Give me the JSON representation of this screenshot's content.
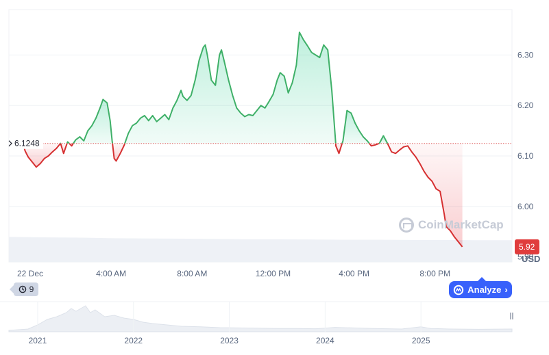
{
  "chart_data": {
    "type": "area",
    "currency_label": "USD",
    "baseline_value": 6.1248,
    "baseline_label": "6.1248",
    "current_value_label": "5.92",
    "current_value": 5.92,
    "ylim": [
      5.89,
      6.39
    ],
    "y_ticks": [
      {
        "label": "6.30",
        "value": 6.3
      },
      {
        "label": "6.20",
        "value": 6.2
      },
      {
        "label": "6.10",
        "value": 6.1
      },
      {
        "label": "6.00",
        "value": 6.0
      },
      {
        "label": "5.90",
        "value": 5.9
      }
    ],
    "x_range": [
      -1.05,
      23.8
    ],
    "x_ticks": [
      {
        "label": "22 Dec",
        "x": 0
      },
      {
        "label": "4:00 AM",
        "x": 4
      },
      {
        "label": "8:00 AM",
        "x": 8
      },
      {
        "label": "12:00 PM",
        "x": 12
      },
      {
        "label": "4:00 PM",
        "x": 16
      },
      {
        "label": "8:00 PM",
        "x": 20
      }
    ],
    "x_unit": "hours after 22 Dec 00:00",
    "series": [
      {
        "values": [
          [
            -0.35,
            6.125
          ],
          [
            -0.25,
            6.11
          ],
          [
            -0.1,
            6.098
          ],
          [
            0.1,
            6.088
          ],
          [
            0.3,
            6.078
          ],
          [
            0.5,
            6.085
          ],
          [
            0.7,
            6.095
          ],
          [
            0.9,
            6.1
          ],
          [
            1.1,
            6.108
          ],
          [
            1.3,
            6.115
          ],
          [
            1.5,
            6.125
          ],
          [
            1.65,
            6.105
          ],
          [
            1.85,
            6.128
          ],
          [
            2.05,
            6.12
          ],
          [
            2.25,
            6.132
          ],
          [
            2.45,
            6.138
          ],
          [
            2.65,
            6.13
          ],
          [
            2.85,
            6.15
          ],
          [
            3.05,
            6.16
          ],
          [
            3.25,
            6.175
          ],
          [
            3.45,
            6.195
          ],
          [
            3.6,
            6.212
          ],
          [
            3.8,
            6.205
          ],
          [
            3.95,
            6.17
          ],
          [
            4.05,
            6.13
          ],
          [
            4.15,
            6.095
          ],
          [
            4.25,
            6.09
          ],
          [
            4.45,
            6.105
          ],
          [
            4.65,
            6.122
          ],
          [
            4.85,
            6.145
          ],
          [
            5.05,
            6.16
          ],
          [
            5.25,
            6.165
          ],
          [
            5.45,
            6.175
          ],
          [
            5.65,
            6.18
          ],
          [
            5.85,
            6.17
          ],
          [
            6.05,
            6.18
          ],
          [
            6.25,
            6.168
          ],
          [
            6.45,
            6.175
          ],
          [
            6.65,
            6.182
          ],
          [
            6.85,
            6.172
          ],
          [
            7.05,
            6.195
          ],
          [
            7.25,
            6.21
          ],
          [
            7.45,
            6.23
          ],
          [
            7.55,
            6.218
          ],
          [
            7.75,
            6.21
          ],
          [
            7.95,
            6.22
          ],
          [
            8.15,
            6.25
          ],
          [
            8.35,
            6.29
          ],
          [
            8.55,
            6.315
          ],
          [
            8.65,
            6.32
          ],
          [
            8.75,
            6.3
          ],
          [
            8.95,
            6.25
          ],
          [
            9.15,
            6.24
          ],
          [
            9.35,
            6.3
          ],
          [
            9.45,
            6.31
          ],
          [
            9.6,
            6.285
          ],
          [
            9.8,
            6.25
          ],
          [
            10.0,
            6.22
          ],
          [
            10.2,
            6.195
          ],
          [
            10.4,
            6.185
          ],
          [
            10.6,
            6.178
          ],
          [
            10.8,
            6.182
          ],
          [
            11.0,
            6.18
          ],
          [
            11.2,
            6.19
          ],
          [
            11.4,
            6.2
          ],
          [
            11.6,
            6.195
          ],
          [
            11.8,
            6.208
          ],
          [
            12.0,
            6.222
          ],
          [
            12.2,
            6.25
          ],
          [
            12.35,
            6.265
          ],
          [
            12.55,
            6.258
          ],
          [
            12.75,
            6.225
          ],
          [
            12.95,
            6.245
          ],
          [
            13.15,
            6.28
          ],
          [
            13.3,
            6.345
          ],
          [
            13.5,
            6.33
          ],
          [
            13.7,
            6.318
          ],
          [
            13.9,
            6.305
          ],
          [
            14.1,
            6.3
          ],
          [
            14.3,
            6.295
          ],
          [
            14.5,
            6.32
          ],
          [
            14.7,
            6.31
          ],
          [
            14.9,
            6.23
          ],
          [
            15.0,
            6.175
          ],
          [
            15.1,
            6.12
          ],
          [
            15.25,
            6.105
          ],
          [
            15.45,
            6.13
          ],
          [
            15.65,
            6.19
          ],
          [
            15.85,
            6.185
          ],
          [
            16.05,
            6.165
          ],
          [
            16.25,
            6.15
          ],
          [
            16.45,
            6.138
          ],
          [
            16.65,
            6.13
          ],
          [
            16.85,
            6.12
          ],
          [
            17.05,
            6.122
          ],
          [
            17.25,
            6.125
          ],
          [
            17.45,
            6.14
          ],
          [
            17.65,
            6.125
          ],
          [
            17.85,
            6.108
          ],
          [
            18.05,
            6.105
          ],
          [
            18.25,
            6.112
          ],
          [
            18.45,
            6.118
          ],
          [
            18.65,
            6.12
          ],
          [
            18.85,
            6.108
          ],
          [
            19.05,
            6.098
          ],
          [
            19.25,
            6.085
          ],
          [
            19.45,
            6.07
          ],
          [
            19.65,
            6.058
          ],
          [
            19.85,
            6.05
          ],
          [
            20.05,
            6.035
          ],
          [
            20.25,
            6.03
          ],
          [
            20.45,
            5.985
          ],
          [
            20.55,
            5.96
          ],
          [
            20.75,
            5.952
          ],
          [
            20.95,
            5.94
          ],
          [
            21.15,
            5.93
          ],
          [
            21.35,
            5.92
          ]
        ]
      }
    ],
    "volume": [
      0.95,
      0.93,
      0.92,
      0.9,
      0.89,
      0.88,
      0.87,
      0.86,
      0.86,
      0.85,
      0.84,
      0.84,
      0.83,
      0.83,
      0.82,
      0.82
    ],
    "navigator": {
      "x_ticks": [
        {
          "label": "2021",
          "x": 2021
        },
        {
          "label": "2022",
          "x": 2022
        },
        {
          "label": "2023",
          "x": 2023
        },
        {
          "label": "2024",
          "x": 2024
        },
        {
          "label": "2025",
          "x": 2025
        }
      ],
      "x_range": [
        2020.7,
        2025.95
      ],
      "values": [
        [
          2020.7,
          0.05
        ],
        [
          2020.9,
          0.1
        ],
        [
          2021.0,
          0.25
        ],
        [
          2021.1,
          0.45
        ],
        [
          2021.2,
          0.55
        ],
        [
          2021.3,
          0.7
        ],
        [
          2021.35,
          0.85
        ],
        [
          2021.4,
          0.75
        ],
        [
          2021.5,
          0.95
        ],
        [
          2021.55,
          0.7
        ],
        [
          2021.6,
          0.8
        ],
        [
          2021.7,
          0.55
        ],
        [
          2021.8,
          0.6
        ],
        [
          2021.9,
          0.5
        ],
        [
          2022.0,
          0.45
        ],
        [
          2022.1,
          0.35
        ],
        [
          2022.2,
          0.3
        ],
        [
          2022.35,
          0.25
        ],
        [
          2022.5,
          0.2
        ],
        [
          2022.7,
          0.18
        ],
        [
          2022.9,
          0.15
        ],
        [
          2023.1,
          0.14
        ],
        [
          2023.3,
          0.13
        ],
        [
          2023.5,
          0.12
        ],
        [
          2023.7,
          0.12
        ],
        [
          2023.9,
          0.11
        ],
        [
          2024.0,
          0.13
        ],
        [
          2024.1,
          0.16
        ],
        [
          2024.3,
          0.14
        ],
        [
          2024.5,
          0.12
        ],
        [
          2024.8,
          0.1
        ],
        [
          2025.0,
          0.18
        ],
        [
          2025.1,
          0.12
        ],
        [
          2025.3,
          0.1
        ],
        [
          2025.6,
          0.09
        ],
        [
          2025.95,
          0.1
        ]
      ]
    }
  },
  "ui": {
    "history_count": "9",
    "history_icon": "history-icon",
    "analyze_label": "Analyze",
    "analyze_icon": "cmc-logo-icon",
    "watermark": "CoinMarketCap",
    "colors": {
      "up": "#16c784",
      "up_line": "#3fb068",
      "down": "#ea3943",
      "down_line": "#d63031",
      "accent": "#3861fb",
      "badge_down": "#e03c3c"
    }
  }
}
